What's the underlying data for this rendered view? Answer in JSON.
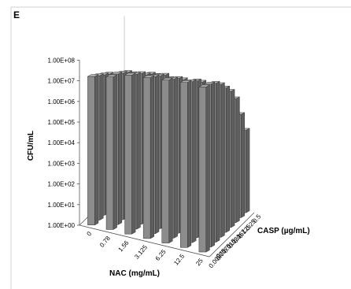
{
  "chart_data": {
    "type": "bar",
    "style": "3d-grouped-columns",
    "panel_label": "E",
    "xlabel": "NAC (mg/mL)",
    "ylabel": "CFU/mL",
    "zlabel": "CASP (µg/mL)",
    "x_categories": [
      "0",
      "0.78",
      "1.56",
      "3.125",
      "6.25",
      "12.5",
      "25"
    ],
    "z_categories": [
      "0",
      "0.00375",
      "0.0075",
      "0.015",
      "0.031",
      "0.062",
      "0.125",
      "0.25",
      "0.5"
    ],
    "y_tick_labels": [
      "1.00E+00",
      "1.00E+01",
      "1.00E+02",
      "1.00E+03",
      "1.00E+04",
      "1.00E+05",
      "1.00E+06",
      "1.00E+07",
      "1.00E+08"
    ],
    "y_scale": "log",
    "ylim": [
      1,
      100000000
    ],
    "grid": false,
    "bar_color": "#8c8c8c",
    "values_log10": [
      [
        7.2,
        7.0,
        6.8,
        6.6,
        6.2,
        5.8,
        4.8,
        4.0,
        3.0
      ],
      [
        7.4,
        7.3,
        7.1,
        6.9,
        6.6,
        6.2,
        5.8,
        4.8,
        3.8
      ],
      [
        7.7,
        7.5,
        7.3,
        7.0,
        6.8,
        6.5,
        6.0,
        5.0,
        4.0
      ],
      [
        7.8,
        7.6,
        7.4,
        7.2,
        6.8,
        6.3,
        5.6,
        4.4,
        3.4
      ],
      [
        7.9,
        7.7,
        7.5,
        7.2,
        6.8,
        6.4,
        5.6,
        4.6,
        3.6
      ],
      [
        8.0,
        7.8,
        7.6,
        7.3,
        6.9,
        6.4,
        5.8,
        4.8,
        3.8
      ],
      [
        8.0,
        7.9,
        7.7,
        7.4,
        7.0,
        6.6,
        6.0,
        5.0,
        4.0
      ]
    ]
  }
}
